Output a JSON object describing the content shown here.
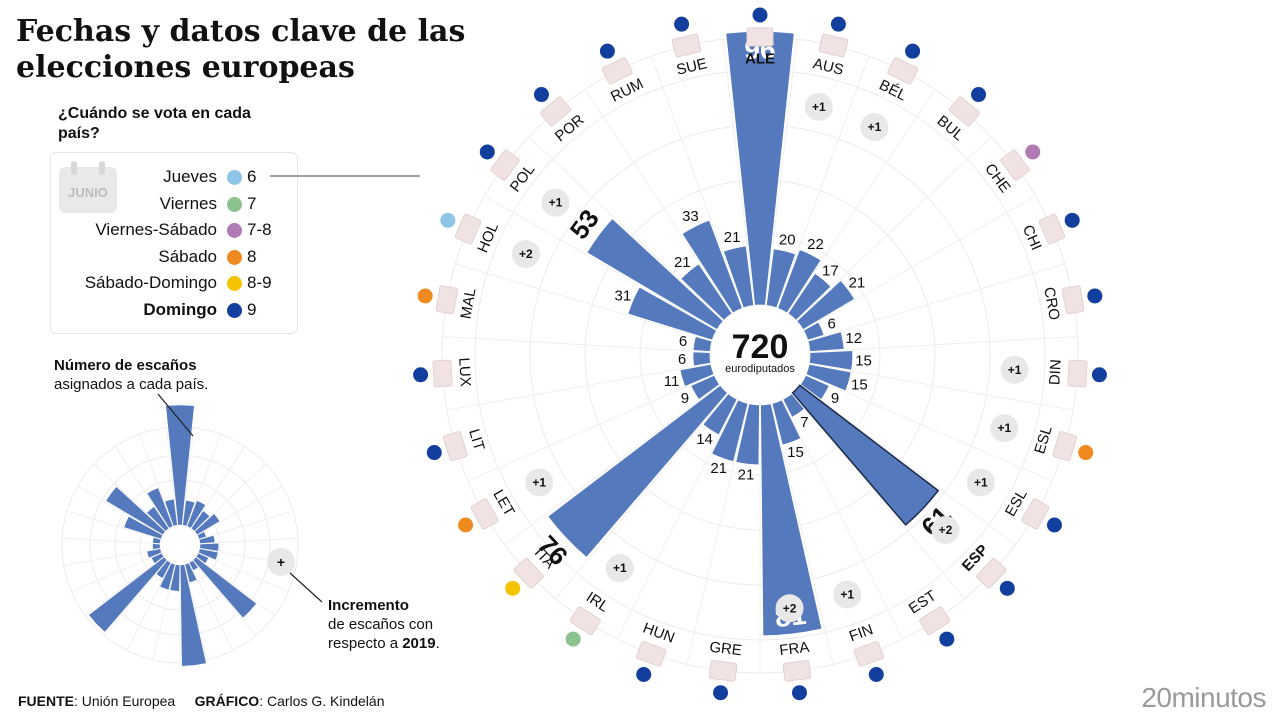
{
  "title": "Fechas y datos clave de las elecciones europeas",
  "legend": {
    "heading": "¿Cuándo se vota en cada país?",
    "calendar_label": "JUNIO",
    "items": [
      {
        "label": "Jueves",
        "day": "6",
        "color": "#8ec4e6"
      },
      {
        "label": "Viernes",
        "day": "7",
        "color": "#8cc28e"
      },
      {
        "label": "Viernes-Sábado",
        "day": "7-8",
        "color": "#b07bb5"
      },
      {
        "label": "Sábado",
        "day": "8",
        "color": "#ee8a1e"
      },
      {
        "label": "Sábado-Domingo",
        "day": "8-9",
        "color": "#f5c400"
      },
      {
        "label": "Domingo",
        "day": "9",
        "color": "#123f9e"
      }
    ]
  },
  "notes": {
    "seats_bold": "Número de escaños",
    "seats_text": "asignados a cada país.",
    "increment_bold": "Incremento",
    "increment_text": "de escaños con respecto a",
    "increment_year": "2019",
    "mini_plus": "+"
  },
  "chart_data": {
    "type": "radial-bar",
    "total": "720",
    "total_label": "eurodiputados",
    "bar_color": "#5579bd",
    "countries": [
      {
        "code": "ALE",
        "seats": 96,
        "vote_day": "9",
        "increase": "",
        "dot_color": "#123f9e"
      },
      {
        "code": "AUS",
        "seats": 20,
        "vote_day": "9",
        "increase": "+1",
        "dot_color": "#123f9e"
      },
      {
        "code": "BÉL",
        "seats": 22,
        "vote_day": "9",
        "increase": "+1",
        "dot_color": "#123f9e"
      },
      {
        "code": "BUL",
        "seats": 17,
        "vote_day": "9",
        "increase": "",
        "dot_color": "#123f9e"
      },
      {
        "code": "CHE",
        "seats": 21,
        "vote_day": "7-8",
        "increase": "",
        "dot_color": "#b07bb5"
      },
      {
        "code": "CHI",
        "seats": 6,
        "vote_day": "9",
        "increase": "",
        "dot_color": "#123f9e"
      },
      {
        "code": "CRO",
        "seats": 12,
        "vote_day": "9",
        "increase": "",
        "dot_color": "#123f9e"
      },
      {
        "code": "DIN",
        "seats": 15,
        "vote_day": "9",
        "increase": "+1",
        "dot_color": "#123f9e"
      },
      {
        "code": "ESL",
        "seats": 15,
        "vote_day": "8",
        "increase": "+1",
        "dot_color": "#ee8a1e"
      },
      {
        "code": "ESL",
        "seats": 9,
        "vote_day": "9",
        "increase": "+1",
        "dot_color": "#123f9e"
      },
      {
        "code": "ESP",
        "seats": 61,
        "vote_day": "9",
        "increase": "+2",
        "dot_color": "#123f9e"
      },
      {
        "code": "EST",
        "seats": 7,
        "vote_day": "9",
        "increase": "",
        "dot_color": "#123f9e"
      },
      {
        "code": "FIN",
        "seats": 15,
        "vote_day": "9",
        "increase": "+1",
        "dot_color": "#123f9e"
      },
      {
        "code": "FRA",
        "seats": 81,
        "vote_day": "9",
        "increase": "+2",
        "dot_color": "#123f9e"
      },
      {
        "code": "GRE",
        "seats": 21,
        "vote_day": "9",
        "increase": "",
        "dot_color": "#123f9e"
      },
      {
        "code": "HUN",
        "seats": 21,
        "vote_day": "9",
        "increase": "",
        "dot_color": "#123f9e"
      },
      {
        "code": "IRL",
        "seats": 14,
        "vote_day": "7",
        "increase": "+1",
        "dot_color": "#8cc28e"
      },
      {
        "code": "ITA",
        "seats": 76,
        "vote_day": "8-9",
        "increase": "",
        "dot_color": "#f5c400"
      },
      {
        "code": "LET",
        "seats": 9,
        "vote_day": "8",
        "increase": "+1",
        "dot_color": "#ee8a1e"
      },
      {
        "code": "LIT",
        "seats": 11,
        "vote_day": "9",
        "increase": "",
        "dot_color": "#123f9e"
      },
      {
        "code": "LUX",
        "seats": 6,
        "vote_day": "9",
        "increase": "",
        "dot_color": "#123f9e"
      },
      {
        "code": "MAL",
        "seats": 6,
        "vote_day": "8",
        "increase": "",
        "dot_color": "#ee8a1e"
      },
      {
        "code": "HOL",
        "seats": 31,
        "vote_day": "6",
        "increase": "+2",
        "dot_color": "#8ec4e6"
      },
      {
        "code": "POL",
        "seats": 53,
        "vote_day": "9",
        "increase": "+1",
        "dot_color": "#123f9e"
      },
      {
        "code": "POR",
        "seats": 21,
        "vote_day": "9",
        "increase": "",
        "dot_color": "#123f9e"
      },
      {
        "code": "RUM",
        "seats": 33,
        "vote_day": "9",
        "increase": "",
        "dot_color": "#123f9e"
      },
      {
        "code": "SUE",
        "seats": 21,
        "vote_day": "9",
        "increase": "",
        "dot_color": "#123f9e"
      }
    ]
  },
  "footer": {
    "source_label": "FUENTE",
    "source_value": ": Unión Europea",
    "graphic_label": "GRÁFICO",
    "graphic_value": ": Carlos G. Kindelán"
  },
  "brand": "20minutos"
}
